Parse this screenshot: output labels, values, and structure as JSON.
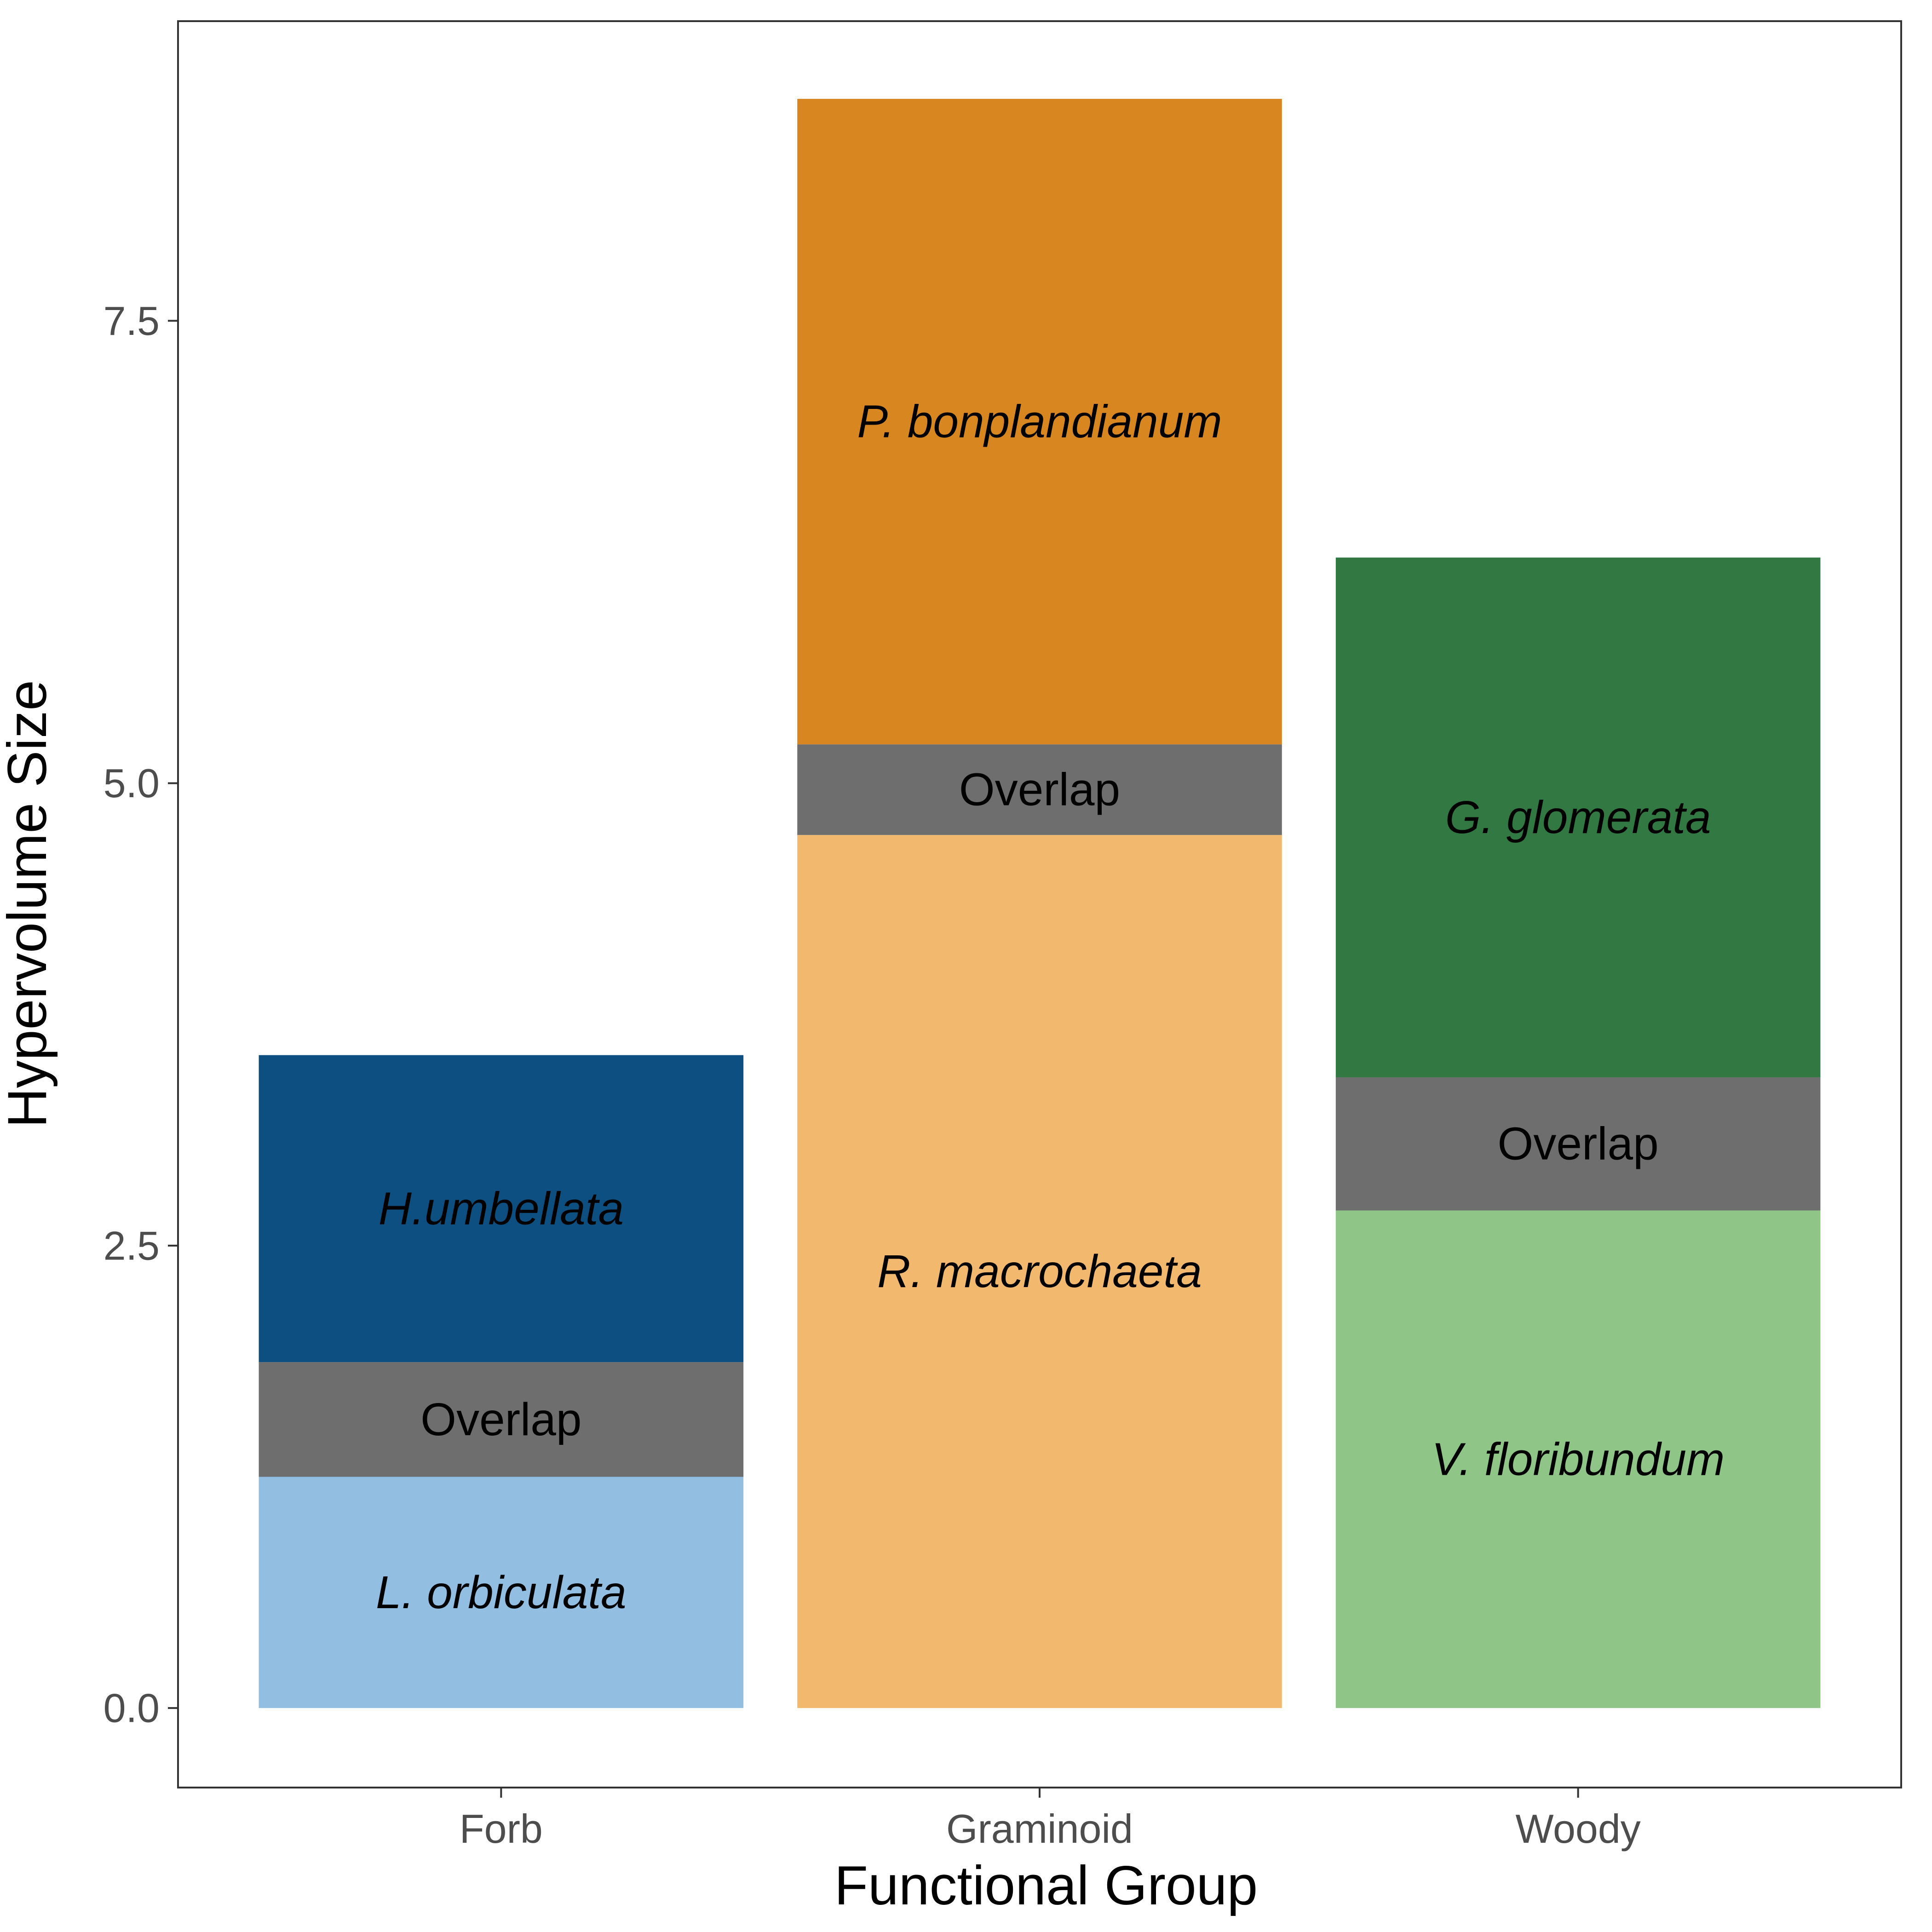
{
  "chart_data": {
    "type": "bar",
    "stacked": true,
    "xlabel": "Functional Group",
    "ylabel": "Hypervolume Size",
    "ylim": [
      -0.43,
      9.12
    ],
    "yticks": [
      0.0,
      2.5,
      5.0,
      7.5
    ],
    "ytick_labels": [
      "0.0",
      "2.5",
      "5.0",
      "7.5"
    ],
    "grid": false,
    "categories": [
      "Forb",
      "Graminoid",
      "Woody"
    ],
    "bars": [
      {
        "category": "Forb",
        "segments": [
          {
            "label": "L. orbiculata",
            "italic": true,
            "start": 0.0,
            "end": 1.25,
            "color": "#91bee1"
          },
          {
            "label": "Overlap",
            "italic": false,
            "start": 1.25,
            "end": 1.87,
            "color": "#6e6e6e"
          },
          {
            "label": "H.umbellata",
            "italic": true,
            "start": 1.87,
            "end": 3.53,
            "color": "#0c4f80"
          }
        ]
      },
      {
        "category": "Graminoid",
        "segments": [
          {
            "label": "R. macrochaeta",
            "italic": true,
            "start": 0.0,
            "end": 4.72,
            "color": "#f2b86e"
          },
          {
            "label": "Overlap",
            "italic": false,
            "start": 4.72,
            "end": 5.21,
            "color": "#6e6e6e"
          },
          {
            "label": "P. bonplandianum",
            "italic": true,
            "start": 5.21,
            "end": 8.7,
            "color": "#d8861f"
          }
        ]
      },
      {
        "category": "Woody",
        "segments": [
          {
            "label": "V. floribundum",
            "italic": true,
            "start": 0.0,
            "end": 2.69,
            "color": "#8fc586"
          },
          {
            "label": "Overlap",
            "italic": false,
            "start": 2.69,
            "end": 3.41,
            "color": "#6e6e6e"
          },
          {
            "label": "G. glomerata",
            "italic": true,
            "start": 3.41,
            "end": 6.22,
            "color": "#327843"
          }
        ]
      }
    ]
  }
}
